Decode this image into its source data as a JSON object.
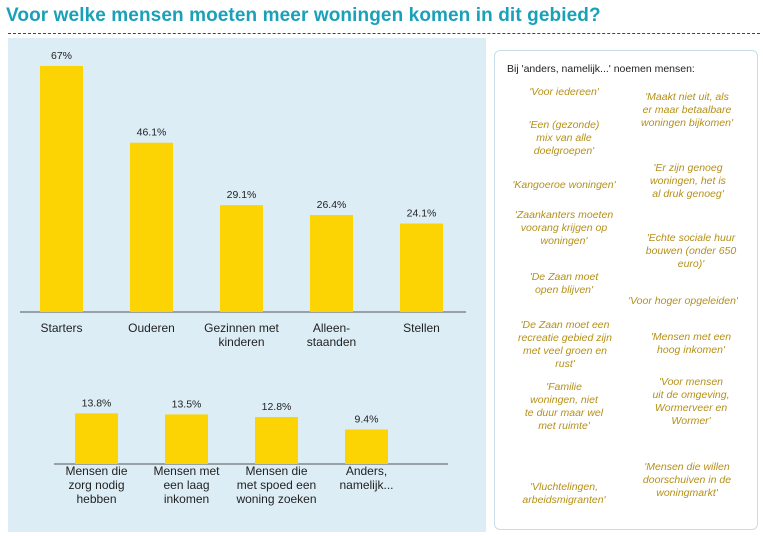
{
  "title": "Voor welke mensen moeten meer woningen komen in dit gebied?",
  "colors": {
    "bar": "#fcd303",
    "panel": "#dcedf6",
    "title": "#1aa0b8",
    "quote_text": "#b59018"
  },
  "chart_data": [
    {
      "type": "bar",
      "categories": [
        "Starters",
        "Ouderen",
        "Gezinnen met\nkinderen",
        "Alleen-\nstaanden",
        "Stellen"
      ],
      "values": [
        67,
        46.1,
        29.1,
        26.4,
        24.1
      ],
      "value_labels": [
        "67%",
        "46.1%",
        "29.1%",
        "26.4%",
        "24.1%"
      ],
      "ylim": [
        0,
        67
      ]
    },
    {
      "type": "bar",
      "categories": [
        "Mensen die\nzorg nodig\nhebben",
        "Mensen met\neen laag\ninkomen",
        "Mensen die\nmet spoed een\nwoning zoeken",
        "Anders,\nnamelijk..."
      ],
      "values": [
        13.8,
        13.5,
        12.8,
        9.4
      ],
      "value_labels": [
        "13.8%",
        "13.5%",
        "12.8%",
        "9.4%"
      ],
      "ylim": [
        0,
        67
      ]
    }
  ],
  "quotes_panel": {
    "heading": "Bij 'anders, namelijk...' noemen mensen:",
    "quotes": [
      "'Voor iedereen'",
      "'Maakt niet uit, als\ner maar betaalbare\nwoningen bijkomen'",
      "'Een (gezonde)\nmix van alle\ndoelgroepen'",
      "'Kangoeroe woningen'",
      "'Er zijn genoeg\nwoningen, het is\nal druk genoeg'",
      "'Zaankanters moeten\nvoorang krijgen op\nwoningen'",
      "'Echte sociale huur\nbouwen (onder 650\neuro)'",
      "'De Zaan moet\nopen blijven'",
      "'Voor hoger opgeleiden'",
      "'De Zaan moet een\nrecreatie gebied zijn\nmet veel groen en\nrust'",
      "'Mensen met een\nhoog inkomen'",
      "'Familie\nwoningen, niet\nte duur maar wel\nmet ruimte'",
      "'Voor mensen\nuit de omgeving,\nWormerveer en\nWormer'",
      "'Vluchtelingen,\narbeidsmigranten'",
      "'Mensen die willen\ndoorschuiven in de\nwoningmarkt'"
    ]
  }
}
